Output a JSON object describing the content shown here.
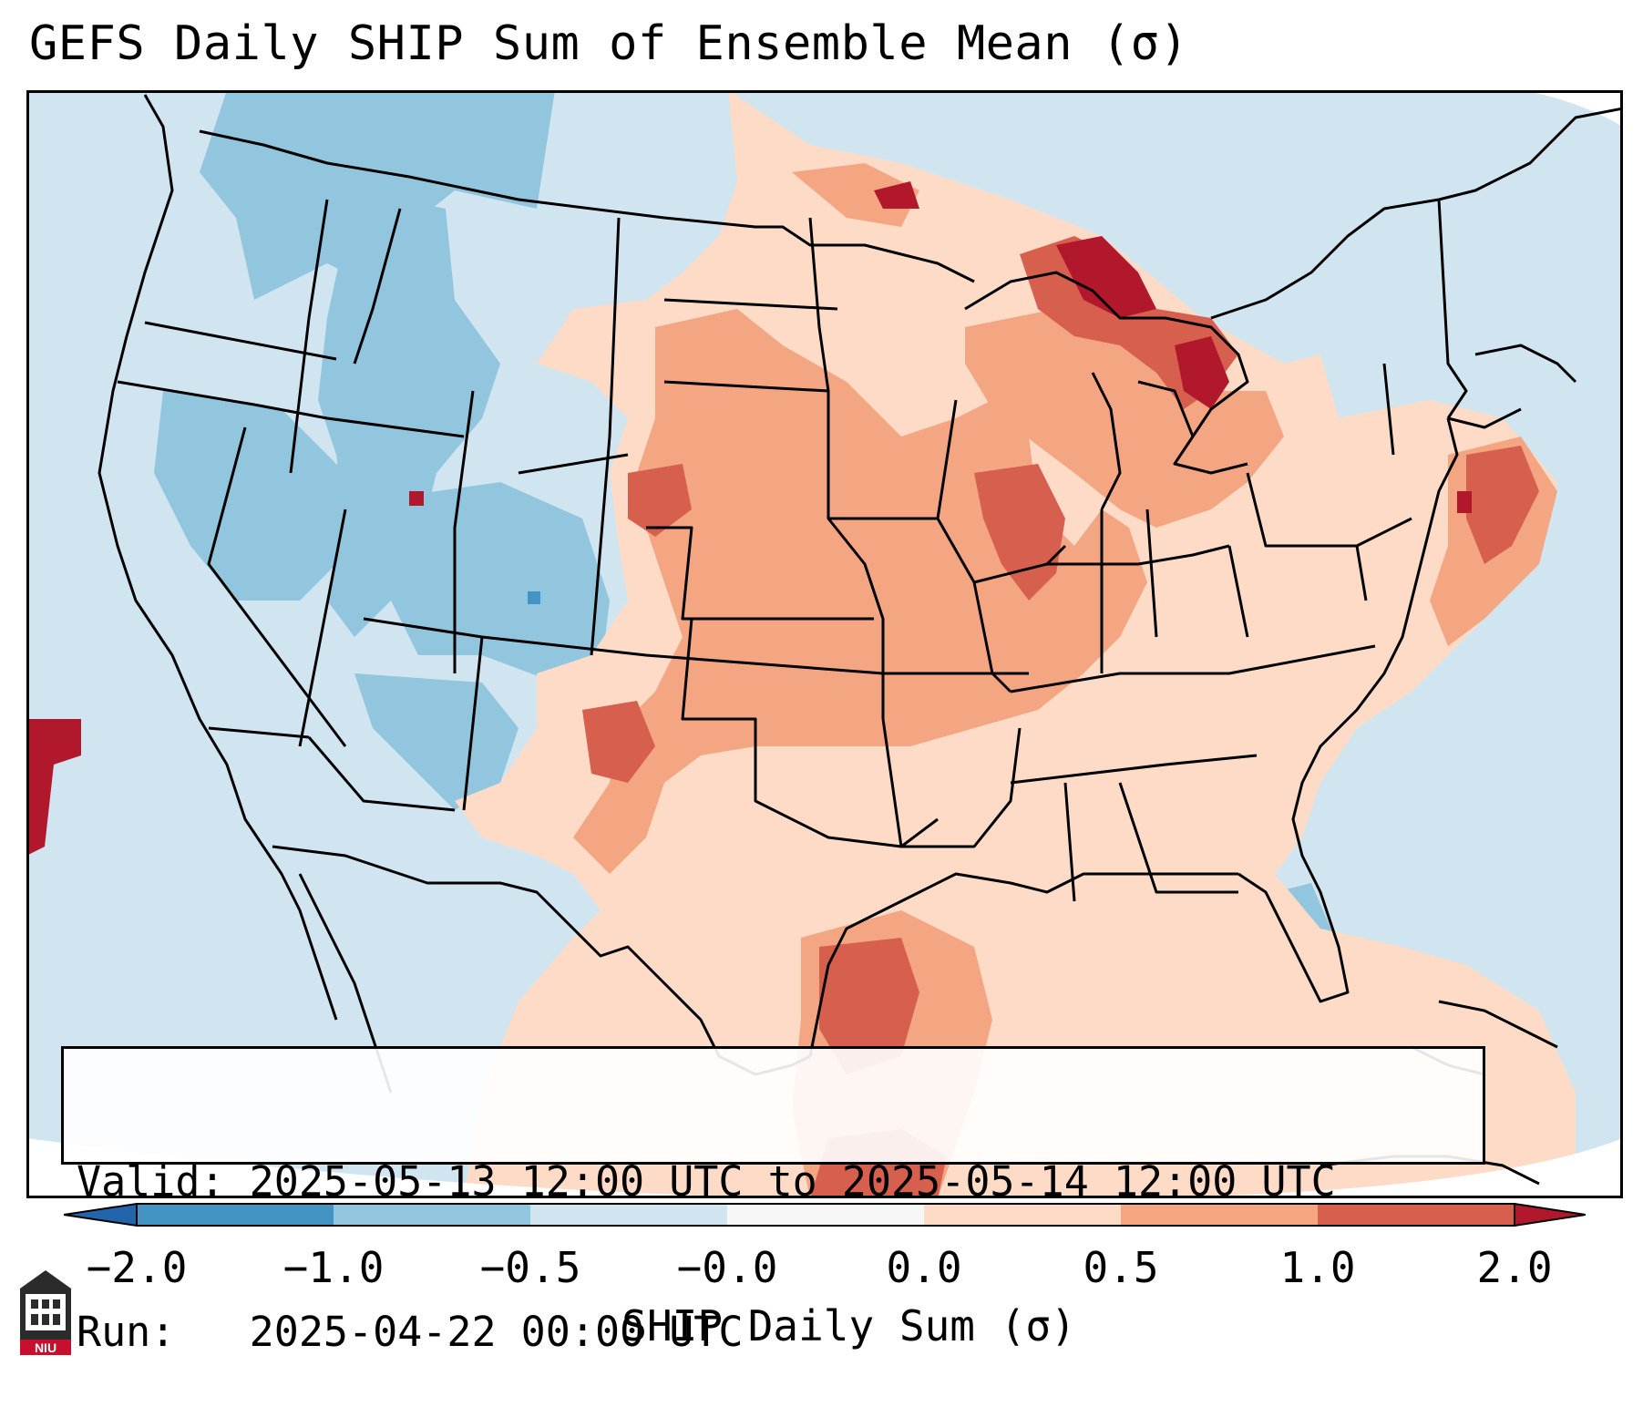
{
  "title": "GEFS Daily SHIP Sum of Ensemble Mean (σ)",
  "info": {
    "valid_line": "Valid: 2025-05-13 12:00 UTC to 2025-05-14 12:00 UTC",
    "run_line": "Run:   2025-04-22 00:00 UTC"
  },
  "colorbar": {
    "label": "SHIP Daily Sum (σ)",
    "ticks": [
      "−2.0",
      "−1.0",
      "−0.5",
      "−0.0",
      "0.0",
      "0.5",
      "1.0",
      "2.0"
    ],
    "colors": [
      "#4393c3",
      "#92c5de",
      "#d1e5f0",
      "#f7f7f7",
      "#fddbc7",
      "#f4a582",
      "#d6604d",
      "#b2182b"
    ]
  },
  "logo": {
    "text": "NIU",
    "color": "#c8102e"
  }
}
